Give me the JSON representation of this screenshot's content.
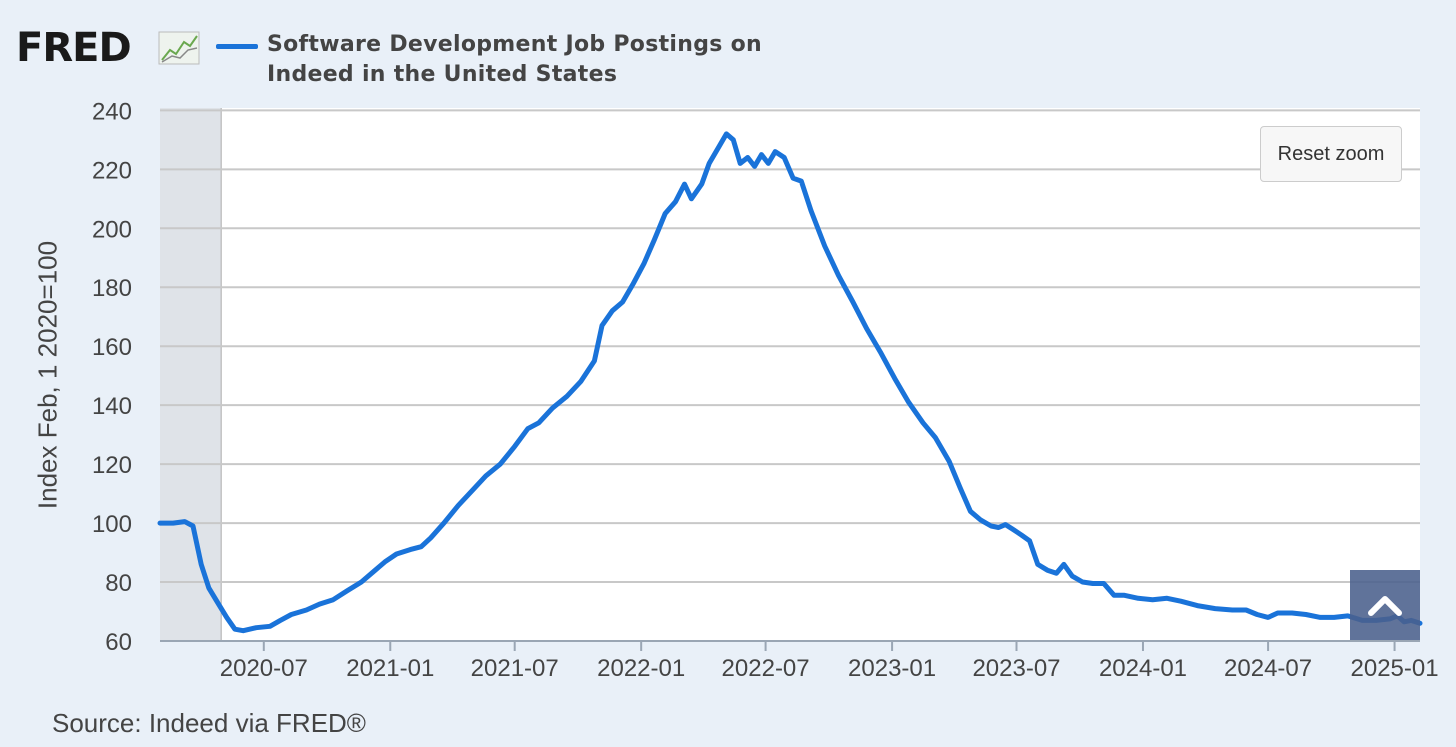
{
  "header": {
    "logo_text": "FRED",
    "logo_icon": "fred-graph-icon",
    "series_title": "Software Development Job Postings on Indeed in the United States",
    "series_color": "#1a73d9"
  },
  "controls": {
    "reset_zoom_label": "Reset zoom",
    "scroll_top_icon": "chevron-up-icon"
  },
  "footer": {
    "source": "Source: Indeed via FRED®"
  },
  "chart_data": {
    "type": "line",
    "ylabel": "Index Feb, 1 2020=100",
    "ylim": [
      60,
      240
    ],
    "yticks": [
      60,
      80,
      100,
      120,
      140,
      160,
      180,
      200,
      220,
      240
    ],
    "xrange": [
      "2020-02-01",
      "2025-02-07"
    ],
    "xticks": [
      "2020-07",
      "2021-01",
      "2021-07",
      "2022-01",
      "2022-07",
      "2023-01",
      "2023-07",
      "2024-01",
      "2024-07",
      "2025-01"
    ],
    "grid": true,
    "recession_shading": [
      "2020-02-01",
      "2020-04-30"
    ],
    "series": [
      {
        "name": "Software Development Job Postings on Indeed in the United States",
        "color": "#1a73d9",
        "points": [
          [
            "2020-02-01",
            100
          ],
          [
            "2020-02-20",
            100
          ],
          [
            "2020-03-08",
            100.5
          ],
          [
            "2020-03-20",
            99
          ],
          [
            "2020-04-01",
            86
          ],
          [
            "2020-04-12",
            78
          ],
          [
            "2020-04-25",
            73
          ],
          [
            "2020-05-08",
            68
          ],
          [
            "2020-05-20",
            64
          ],
          [
            "2020-06-01",
            63.5
          ],
          [
            "2020-06-20",
            64.5
          ],
          [
            "2020-07-10",
            65
          ],
          [
            "2020-07-25",
            67
          ],
          [
            "2020-08-10",
            69
          ],
          [
            "2020-09-01",
            70.5
          ],
          [
            "2020-09-20",
            72.5
          ],
          [
            "2020-10-10",
            74
          ],
          [
            "2020-10-30",
            77
          ],
          [
            "2020-11-20",
            80
          ],
          [
            "2020-12-10",
            84
          ],
          [
            "2020-12-25",
            87
          ],
          [
            "2021-01-10",
            89.5
          ],
          [
            "2021-01-30",
            91
          ],
          [
            "2021-02-15",
            92
          ],
          [
            "2021-03-01",
            95
          ],
          [
            "2021-03-20",
            100
          ],
          [
            "2021-04-10",
            106
          ],
          [
            "2021-04-30",
            111
          ],
          [
            "2021-05-20",
            116
          ],
          [
            "2021-06-10",
            120
          ],
          [
            "2021-07-01",
            126
          ],
          [
            "2021-07-20",
            132
          ],
          [
            "2021-08-05",
            134
          ],
          [
            "2021-08-25",
            139
          ],
          [
            "2021-09-15",
            143
          ],
          [
            "2021-10-05",
            148
          ],
          [
            "2021-10-25",
            155
          ],
          [
            "2021-11-05",
            167
          ],
          [
            "2021-11-20",
            172
          ],
          [
            "2021-12-05",
            175
          ],
          [
            "2021-12-20",
            181
          ],
          [
            "2022-01-05",
            188
          ],
          [
            "2022-01-20",
            196
          ],
          [
            "2022-02-05",
            205
          ],
          [
            "2022-02-20",
            209
          ],
          [
            "2022-03-05",
            215
          ],
          [
            "2022-03-15",
            210
          ],
          [
            "2022-03-30",
            215
          ],
          [
            "2022-04-10",
            222
          ],
          [
            "2022-04-25",
            228
          ],
          [
            "2022-05-05",
            232
          ],
          [
            "2022-05-15",
            230
          ],
          [
            "2022-05-25",
            222
          ],
          [
            "2022-06-05",
            224
          ],
          [
            "2022-06-15",
            221
          ],
          [
            "2022-06-25",
            225
          ],
          [
            "2022-07-05",
            222
          ],
          [
            "2022-07-15",
            226
          ],
          [
            "2022-07-28",
            224
          ],
          [
            "2022-08-10",
            217
          ],
          [
            "2022-08-22",
            216
          ],
          [
            "2022-09-05",
            206
          ],
          [
            "2022-09-25",
            194
          ],
          [
            "2022-10-15",
            184
          ],
          [
            "2022-11-05",
            175
          ],
          [
            "2022-11-25",
            166
          ],
          [
            "2022-12-15",
            158
          ],
          [
            "2023-01-05",
            149
          ],
          [
            "2023-01-25",
            141
          ],
          [
            "2023-02-15",
            134
          ],
          [
            "2023-03-05",
            129
          ],
          [
            "2023-03-25",
            121
          ],
          [
            "2023-04-10",
            112
          ],
          [
            "2023-04-25",
            104
          ],
          [
            "2023-05-10",
            101
          ],
          [
            "2023-05-25",
            99
          ],
          [
            "2023-06-05",
            98.5
          ],
          [
            "2023-06-15",
            99.5
          ],
          [
            "2023-06-25",
            98
          ],
          [
            "2023-07-08",
            96
          ],
          [
            "2023-07-20",
            94
          ],
          [
            "2023-08-01",
            86
          ],
          [
            "2023-08-15",
            84
          ],
          [
            "2023-08-28",
            83
          ],
          [
            "2023-09-08",
            86
          ],
          [
            "2023-09-20",
            82
          ],
          [
            "2023-10-05",
            80
          ],
          [
            "2023-10-20",
            79.5
          ],
          [
            "2023-11-05",
            79.5
          ],
          [
            "2023-11-20",
            75.5
          ],
          [
            "2023-12-05",
            75.5
          ],
          [
            "2023-12-25",
            74.5
          ],
          [
            "2024-01-15",
            74
          ],
          [
            "2024-02-05",
            74.5
          ],
          [
            "2024-02-25",
            73.5
          ],
          [
            "2024-03-20",
            72
          ],
          [
            "2024-04-15",
            71
          ],
          [
            "2024-05-10",
            70.5
          ],
          [
            "2024-05-30",
            70.5
          ],
          [
            "2024-06-15",
            69
          ],
          [
            "2024-07-01",
            68
          ],
          [
            "2024-07-15",
            69.5
          ],
          [
            "2024-08-05",
            69.5
          ],
          [
            "2024-08-25",
            69
          ],
          [
            "2024-09-15",
            68
          ],
          [
            "2024-10-05",
            68
          ],
          [
            "2024-10-25",
            68.5
          ],
          [
            "2024-11-15",
            67
          ],
          [
            "2024-12-05",
            67
          ],
          [
            "2024-12-25",
            67.5
          ],
          [
            "2025-01-05",
            68.5
          ],
          [
            "2025-01-15",
            66.5
          ],
          [
            "2025-01-25",
            67
          ],
          [
            "2025-02-07",
            66
          ]
        ]
      }
    ]
  }
}
